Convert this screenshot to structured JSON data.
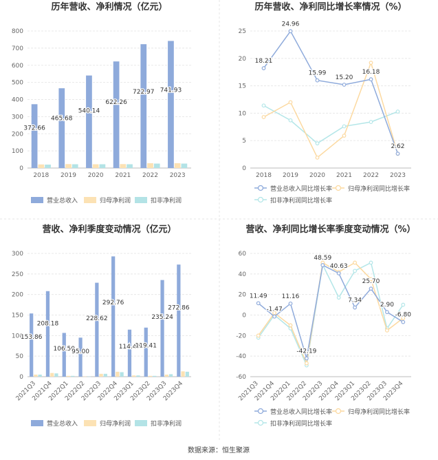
{
  "source": "数据来源：恒生聚源",
  "colors": {
    "series1": "#8eaadb",
    "series2": "#fce2b4",
    "series3": "#b3e3e6",
    "line1": "#8eaadb",
    "line2": "#fcd9a0",
    "line3": "#b3e6e8"
  },
  "chart_data": [
    {
      "type": "bar",
      "title": "历年营收、净利情况（亿元）",
      "categories": [
        "2018",
        "2019",
        "2020",
        "2021",
        "2022",
        "2023"
      ],
      "ylim": [
        0,
        800
      ],
      "yticks": [
        0,
        100,
        200,
        300,
        400,
        500,
        600,
        700,
        800
      ],
      "grid": true,
      "legend": "bottom",
      "series": [
        {
          "name": "营业总收入",
          "values": [
            372.66,
            465.68,
            540.14,
            622.26,
            722.97,
            741.93
          ],
          "labels": [
            "372.66",
            "465.68",
            "540.14",
            "622.26",
            "722.97",
            "741.93"
          ]
        },
        {
          "name": "归母净利润",
          "values": [
            21,
            23,
            22,
            23,
            28,
            28
          ]
        },
        {
          "name": "扣非净利润",
          "values": [
            20,
            22,
            22,
            22,
            26,
            26
          ]
        }
      ]
    },
    {
      "type": "line",
      "title": "历年营收、净利同比增长率情况（%）",
      "categories": [
        "2018",
        "2019",
        "2020",
        "2021",
        "2022",
        "2023"
      ],
      "ylim": [
        0,
        25
      ],
      "yticks": [
        0,
        5,
        10,
        15,
        20,
        25
      ],
      "grid": true,
      "legend": "bottom",
      "series": [
        {
          "name": "营业总收入同比增长率",
          "values": [
            18.21,
            24.96,
            15.99,
            15.2,
            16.18,
            2.62
          ],
          "labels": [
            "18.21",
            "24.96",
            "15.99",
            "15.20",
            "16.18",
            "2.62"
          ]
        },
        {
          "name": "归母净利润同比增长率",
          "values": [
            9.3,
            12.0,
            1.9,
            5.9,
            19.2,
            2.6
          ]
        },
        {
          "name": "扣非净利润同比增长率",
          "values": [
            11.4,
            8.7,
            4.5,
            7.6,
            8.4,
            10.3
          ]
        }
      ]
    },
    {
      "type": "bar",
      "title": "营收、净利季度变动情况（亿元）",
      "categories": [
        "2021Q3",
        "2021Q4",
        "2022Q1",
        "2022Q2",
        "2022Q3",
        "2022Q4",
        "2023Q1",
        "2023Q2",
        "2023Q3",
        "2023Q4"
      ],
      "ylim": [
        0,
        300
      ],
      "yticks": [
        0,
        50,
        100,
        150,
        200,
        250,
        300
      ],
      "grid": true,
      "legend": "bottom",
      "series": [
        {
          "name": "营业总收入",
          "values": [
            153.86,
            208.18,
            106.5,
            95.0,
            228.62,
            292.76,
            114.47,
            119.41,
            235.24,
            272.86
          ],
          "labels": [
            "153.86",
            "208.18",
            "106.50",
            "95.00",
            "228.62",
            "292.76",
            "114.47",
            "119.41",
            "235.24",
            "272.86"
          ]
        },
        {
          "name": "归母净利润",
          "values": [
            5,
            9,
            2,
            0.5,
            7,
            12,
            3,
            2,
            5,
            13
          ]
        },
        {
          "name": "扣非净利润",
          "values": [
            5,
            8,
            2,
            0.5,
            7,
            11,
            3,
            2,
            6,
            12
          ]
        }
      ]
    },
    {
      "type": "line",
      "title": "营收、净利同比增长率季度变动情况（%）",
      "categories": [
        "2021Q3",
        "2021Q4",
        "2022Q1",
        "2022Q2",
        "2022Q3",
        "2022Q4",
        "2023Q1",
        "2023Q2",
        "2023Q3",
        "2023Q4"
      ],
      "ylim": [
        -60,
        60
      ],
      "yticks": [
        -60,
        -40,
        -20,
        0,
        20,
        40,
        60
      ],
      "grid": true,
      "legend": "bottom",
      "series": [
        {
          "name": "营业总收入同比增长率",
          "values": [
            11.49,
            -1.47,
            11.16,
            -42.19,
            48.59,
            40.63,
            7.34,
            25.7,
            2.9,
            -6.8
          ],
          "labels": [
            "11.49",
            "-1.47",
            "11.16",
            "-42.19",
            "48.59",
            "40.63",
            "7.34",
            "25.70",
            "2.90",
            "-6.80"
          ]
        },
        {
          "name": "归母净利润同比增长率",
          "values": [
            -20,
            2,
            -10,
            -47,
            51,
            42,
            51,
            35,
            -15,
            -3
          ]
        },
        {
          "name": "扣非净利润同比增长率",
          "values": [
            -22,
            0,
            -13,
            -49,
            49,
            17,
            43,
            51,
            -13,
            10
          ]
        }
      ]
    }
  ]
}
